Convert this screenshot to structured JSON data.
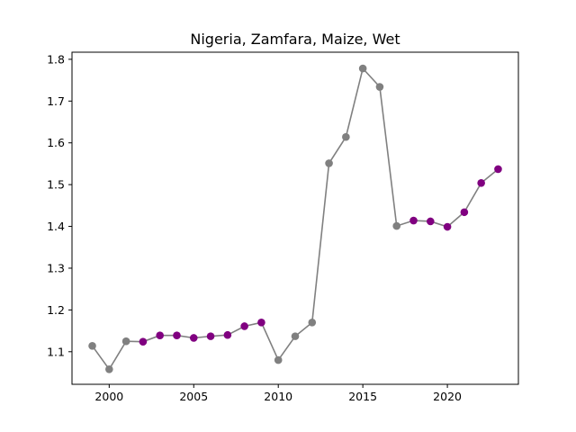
{
  "chart_data": {
    "type": "line",
    "title": "Nigeria, Zamfara, Maize, Wet",
    "xlabel": "",
    "ylabel": "",
    "xlim": [
      1997.8,
      2024.2
    ],
    "ylim": [
      1.022,
      1.817
    ],
    "x_ticks": [
      2000,
      2005,
      2010,
      2015,
      2020
    ],
    "y_ticks": [
      1.1,
      1.2,
      1.3,
      1.4,
      1.5,
      1.6,
      1.7,
      1.8
    ],
    "x_tick_labels": [
      "2000",
      "2005",
      "2010",
      "2015",
      "2020"
    ],
    "y_tick_labels": [
      "1.1",
      "1.2",
      "1.3",
      "1.4",
      "1.5",
      "1.6",
      "1.7",
      "1.8"
    ],
    "grid": false,
    "line_color": "#808080",
    "marker_colors": {
      "gray": "#808080",
      "purple": "#800080"
    },
    "x": [
      1999,
      2000,
      2001,
      2002,
      2003,
      2004,
      2005,
      2006,
      2007,
      2008,
      2009,
      2010,
      2011,
      2012,
      2013,
      2014,
      2015,
      2016,
      2017,
      2018,
      2019,
      2020,
      2021,
      2022,
      2023
    ],
    "y": [
      1.114,
      1.058,
      1.125,
      1.124,
      1.139,
      1.139,
      1.133,
      1.137,
      1.14,
      1.161,
      1.17,
      1.08,
      1.137,
      1.17,
      1.551,
      1.614,
      1.778,
      1.734,
      1.401,
      1.414,
      1.412,
      1.399,
      1.434,
      1.504,
      1.537
    ],
    "marker_color_keys": [
      "gray",
      "gray",
      "gray",
      "purple",
      "purple",
      "purple",
      "purple",
      "purple",
      "purple",
      "purple",
      "purple",
      "gray",
      "gray",
      "gray",
      "gray",
      "gray",
      "gray",
      "gray",
      "gray",
      "purple",
      "purple",
      "purple",
      "purple",
      "purple",
      "purple"
    ]
  }
}
